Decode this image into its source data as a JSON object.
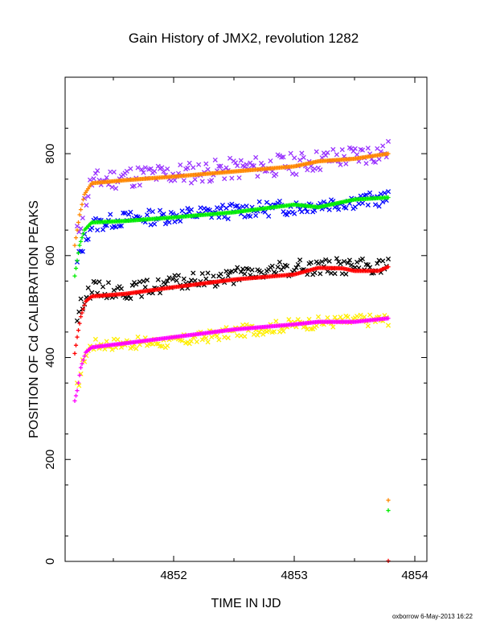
{
  "chart_data": {
    "type": "scatter",
    "title": "Gain History of JMX2, revolution 1282",
    "xlabel": "TIME IN IJD",
    "ylabel": "POSITION OF Cd CALIBRATION PEAKS",
    "xlim": [
      4851.1,
      4854.1
    ],
    "ylim": [
      0,
      950
    ],
    "x_ticks": [
      4852,
      4853,
      4854
    ],
    "y_ticks": [
      0,
      200,
      400,
      600,
      800
    ],
    "grid": false,
    "legend": "none",
    "credit": "oxborrow  6-May-2013 16:22",
    "series": [
      {
        "color": "#9933ff",
        "marker": "x",
        "noise": 22,
        "seed": 11,
        "knots": [
          [
            4851.2,
            640
          ],
          [
            4851.26,
            700
          ],
          [
            4851.32,
            745
          ],
          [
            4851.6,
            755
          ],
          [
            4852.0,
            760
          ],
          [
            4852.5,
            770
          ],
          [
            4853.0,
            780
          ],
          [
            4853.3,
            790
          ],
          [
            4853.78,
            805
          ]
        ]
      },
      {
        "color": "#ff8800",
        "marker": "+",
        "noise": 0,
        "seed": 12,
        "knots": [
          [
            4851.18,
            620
          ],
          [
            4851.22,
            680
          ],
          [
            4851.26,
            720
          ],
          [
            4851.32,
            742
          ],
          [
            4851.6,
            748
          ],
          [
            4852.0,
            755
          ],
          [
            4852.5,
            765
          ],
          [
            4853.0,
            775
          ],
          [
            4853.2,
            785
          ],
          [
            4853.5,
            790
          ],
          [
            4853.78,
            800
          ]
        ]
      },
      {
        "color": "#0000ff",
        "marker": "x",
        "noise": 15,
        "seed": 13,
        "knots": [
          [
            4851.2,
            585
          ],
          [
            4851.26,
            630
          ],
          [
            4851.32,
            660
          ],
          [
            4851.6,
            672
          ],
          [
            4852.0,
            678
          ],
          [
            4852.5,
            688
          ],
          [
            4853.0,
            695
          ],
          [
            4853.4,
            705
          ],
          [
            4853.78,
            712
          ]
        ]
      },
      {
        "color": "#00ee00",
        "marker": "+",
        "noise": 0,
        "seed": 14,
        "knots": [
          [
            4851.18,
            560
          ],
          [
            4851.22,
            620
          ],
          [
            4851.26,
            650
          ],
          [
            4851.32,
            665
          ],
          [
            4851.6,
            668
          ],
          [
            4852.0,
            675
          ],
          [
            4852.5,
            685
          ],
          [
            4853.0,
            700
          ],
          [
            4853.2,
            695
          ],
          [
            4853.5,
            710
          ],
          [
            4853.78,
            714
          ]
        ]
      },
      {
        "color": "#000000",
        "marker": "x",
        "noise": 16,
        "seed": 15,
        "knots": [
          [
            4851.2,
            480
          ],
          [
            4851.26,
            520
          ],
          [
            4851.32,
            535
          ],
          [
            4851.6,
            530
          ],
          [
            4852.0,
            545
          ],
          [
            4852.5,
            560
          ],
          [
            4853.0,
            575
          ],
          [
            4853.3,
            580
          ],
          [
            4853.78,
            578
          ]
        ]
      },
      {
        "color": "#ff0000",
        "marker": "+",
        "noise": 0,
        "seed": 16,
        "knots": [
          [
            4851.18,
            408
          ],
          [
            4851.2,
            440
          ],
          [
            4851.23,
            480
          ],
          [
            4851.27,
            510
          ],
          [
            4851.32,
            520
          ],
          [
            4851.6,
            525
          ],
          [
            4852.0,
            538
          ],
          [
            4852.5,
            553
          ],
          [
            4853.0,
            563
          ],
          [
            4853.2,
            576
          ],
          [
            4853.4,
            575
          ],
          [
            4853.5,
            570
          ],
          [
            4853.7,
            570
          ],
          [
            4853.78,
            578
          ]
        ]
      },
      {
        "color": "#ffee00",
        "marker": "x",
        "noise": 12,
        "seed": 17,
        "knots": [
          [
            4851.2,
            340
          ],
          [
            4851.26,
            400
          ],
          [
            4851.32,
            425
          ],
          [
            4851.6,
            428
          ],
          [
            4852.0,
            430
          ],
          [
            4852.5,
            450
          ],
          [
            4853.0,
            465
          ],
          [
            4853.3,
            470
          ],
          [
            4853.78,
            475
          ]
        ]
      },
      {
        "color": "#ff00ff",
        "marker": "+",
        "noise": 0,
        "seed": 18,
        "knots": [
          [
            4851.18,
            315
          ],
          [
            4851.2,
            335
          ],
          [
            4851.23,
            380
          ],
          [
            4851.27,
            410
          ],
          [
            4851.32,
            420
          ],
          [
            4851.6,
            428
          ],
          [
            4852.0,
            440
          ],
          [
            4852.5,
            455
          ],
          [
            4853.0,
            465
          ],
          [
            4853.2,
            470
          ],
          [
            4853.5,
            470
          ],
          [
            4853.78,
            477
          ]
        ]
      }
    ],
    "isolated_points": [
      {
        "x": 4853.78,
        "y": 120,
        "color": "#ff8800",
        "marker": "+"
      },
      {
        "x": 4853.78,
        "y": 100,
        "color": "#00ee00",
        "marker": "+"
      },
      {
        "x": 4853.78,
        "y": 1,
        "color": "#ff0000",
        "marker": "+"
      }
    ]
  }
}
